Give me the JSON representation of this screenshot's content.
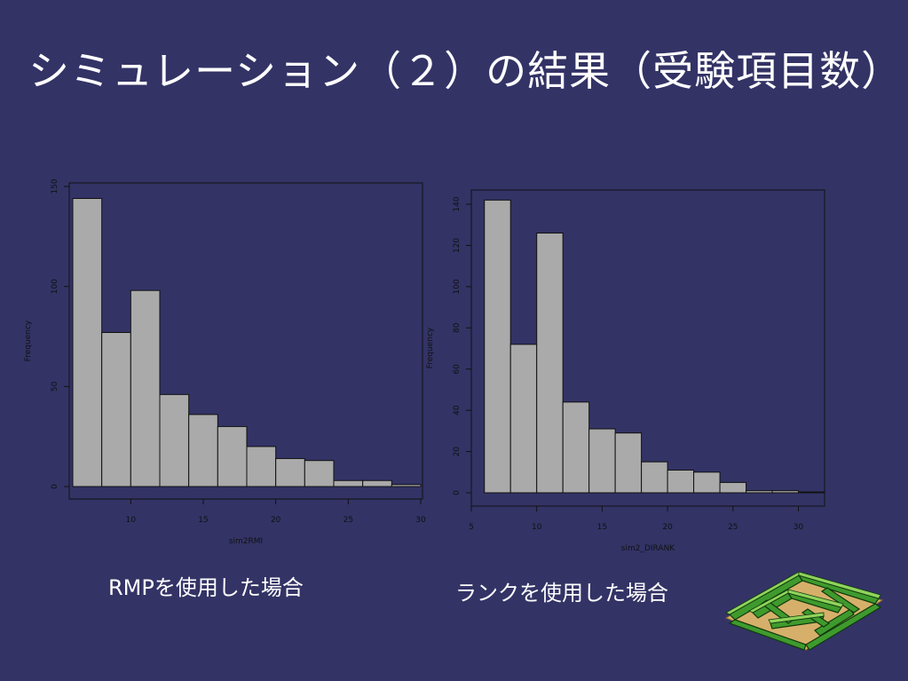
{
  "slide": {
    "title": "シミュレーション（２）の結果（受験項目数）",
    "captions": [
      "RMPを使用した場合",
      "ランクを使用した場合"
    ]
  },
  "colors": {
    "background": "#333366",
    "bar_fill": "#aaaaaa",
    "bar_stroke": "#111111",
    "axis": "#111111",
    "text": "#ffffff"
  },
  "chart_data": [
    {
      "type": "bar",
      "title": "",
      "xlabel": "sim2RMI",
      "ylabel": "Frequency",
      "xlim": [
        6,
        30
      ],
      "ylim": [
        0,
        150
      ],
      "bin_width": 2,
      "bin_starts": [
        6,
        8,
        10,
        12,
        14,
        16,
        18,
        20,
        22,
        24,
        26,
        28
      ],
      "values": [
        144,
        77,
        98,
        46,
        36,
        30,
        20,
        14,
        13,
        3,
        3,
        1
      ],
      "x_ticks": [
        10,
        15,
        20,
        25,
        30
      ],
      "y_ticks": [
        0,
        50,
        100,
        150
      ]
    },
    {
      "type": "bar",
      "title": "",
      "xlabel": "sim2_DIRANK",
      "ylabel": "Frequency",
      "xlim": [
        5,
        32
      ],
      "ylim": [
        0,
        140
      ],
      "bin_width": 2,
      "bin_starts": [
        6,
        8,
        10,
        12,
        14,
        16,
        18,
        20,
        22,
        24,
        26,
        28,
        30
      ],
      "values": [
        142,
        72,
        126,
        44,
        31,
        29,
        15,
        11,
        10,
        5,
        1,
        1,
        0.4
      ],
      "x_ticks": [
        5,
        10,
        15,
        20,
        25,
        30
      ],
      "y_ticks": [
        0,
        20,
        40,
        60,
        80,
        100,
        120,
        140
      ]
    }
  ]
}
